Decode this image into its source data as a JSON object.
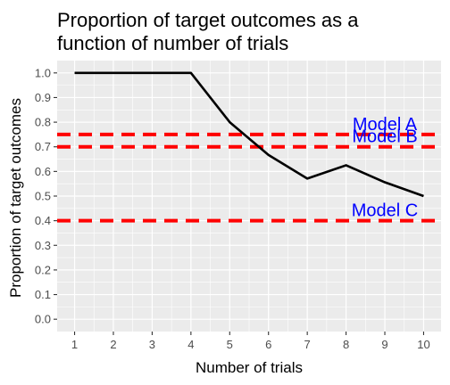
{
  "chart_data": {
    "type": "line",
    "title_lines": [
      "Proportion of target outcomes as a",
      "function of number of trials"
    ],
    "xlabel": "Number of trials",
    "ylabel": "Proportion of target outcomes",
    "x": [
      1,
      2,
      3,
      4,
      5,
      6,
      7,
      8,
      9,
      10
    ],
    "series": [
      {
        "values": [
          1.0,
          1.0,
          1.0,
          1.0,
          0.8,
          0.667,
          0.571,
          0.625,
          0.556,
          0.5
        ],
        "color": "#000000"
      }
    ],
    "xlim": [
      0.55,
      10.45
    ],
    "ylim": [
      -0.05,
      1.05
    ],
    "x_ticks": [
      1,
      2,
      3,
      4,
      5,
      6,
      7,
      8,
      9,
      10
    ],
    "y_ticks": [
      "0.0",
      "0.1",
      "0.2",
      "0.3",
      "0.4",
      "0.5",
      "0.6",
      "0.7",
      "0.8",
      "0.9",
      "1.0"
    ],
    "reference_lines": [
      {
        "label": "Model A",
        "y": 0.75,
        "color": "#ff0000",
        "style": "dashed"
      },
      {
        "label": "Model B",
        "y": 0.7,
        "color": "#ff0000",
        "style": "dashed"
      },
      {
        "label": "Model C",
        "y": 0.4,
        "color": "#ff0000",
        "style": "dashed"
      }
    ],
    "annotation_x": 9.0,
    "annotation_color": "#0000ff",
    "grid": true,
    "panel_background": "#ebebeb",
    "grid_color": "#ffffff",
    "legend": "none"
  }
}
